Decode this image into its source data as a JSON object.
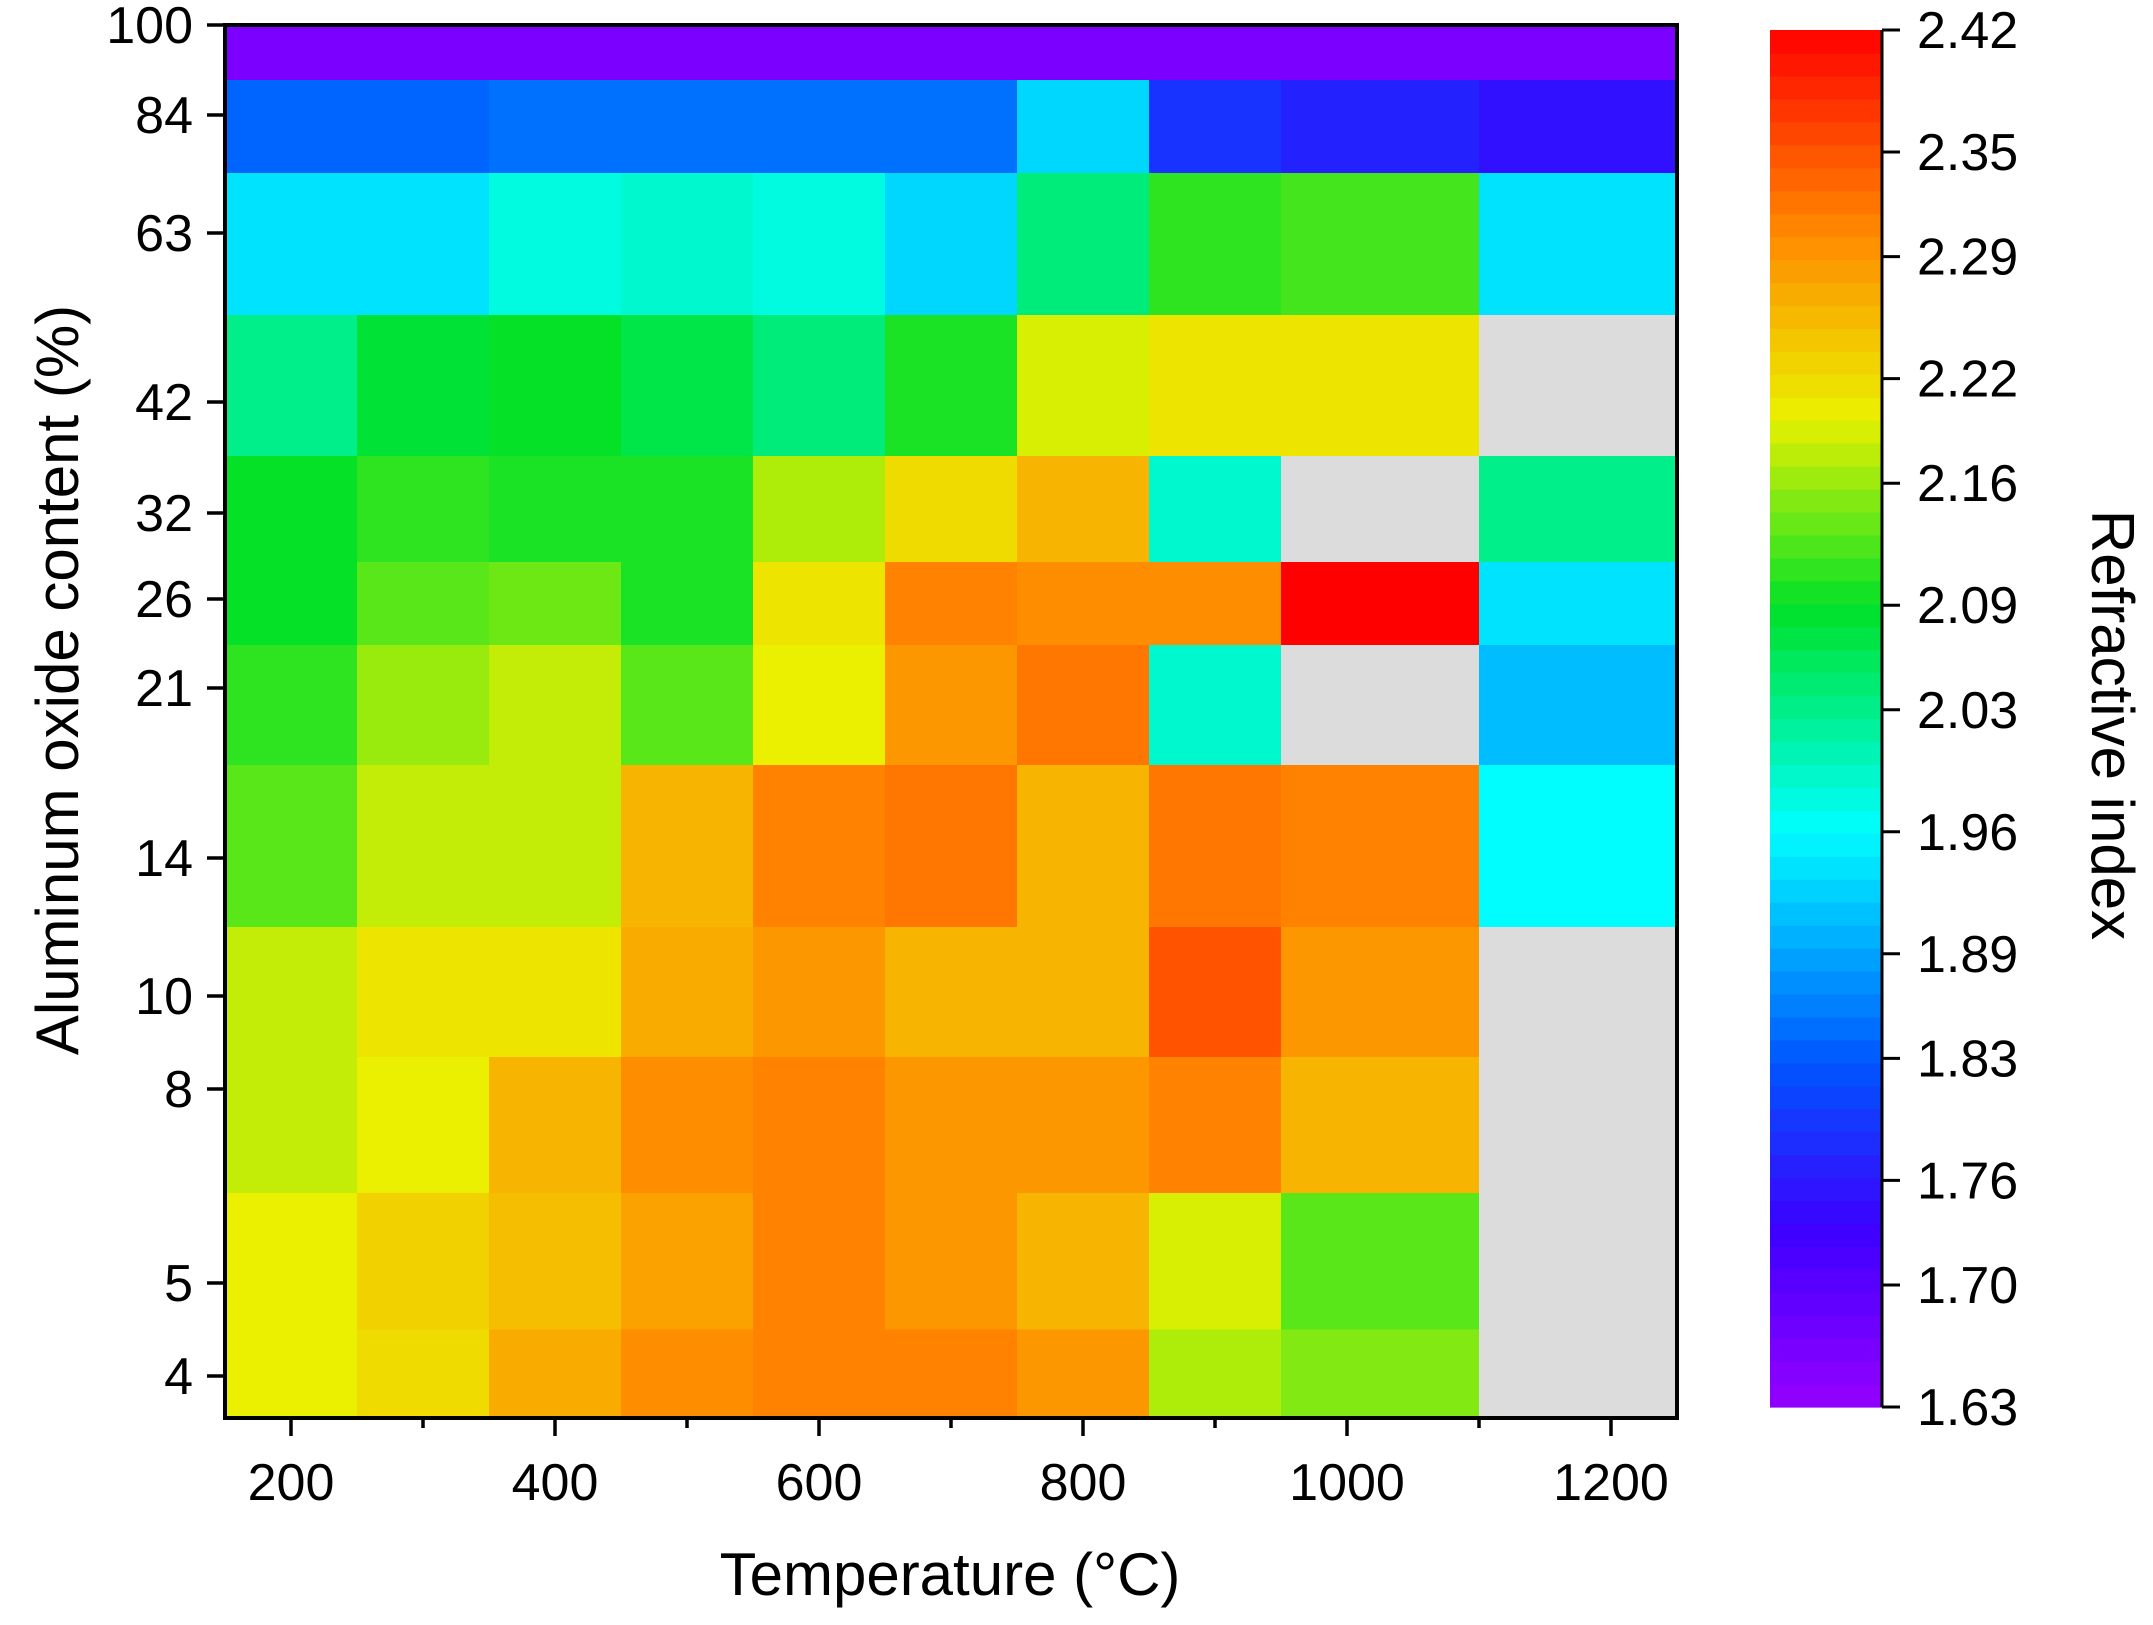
{
  "chart_data": {
    "type": "heatmap",
    "xlabel": "Temperature (°C)",
    "ylabel": "Aluminum oxide content (%)",
    "colorbar_label": "Refractive index",
    "x_ticks": [
      200,
      400,
      600,
      800,
      1000,
      1200
    ],
    "x_tick_labels": [
      "200",
      "400",
      "600",
      "800",
      "1000",
      "1200"
    ],
    "xlim": [
      150,
      1250
    ],
    "y_ticks": [
      4,
      5,
      8,
      10,
      14,
      21,
      26,
      32,
      42,
      63,
      84,
      100
    ],
    "y_tick_labels": [
      "4",
      "5",
      "8",
      "10",
      "14",
      "21",
      "26",
      "32",
      "42",
      "63",
      "84",
      "100"
    ],
    "colorbar_range": [
      1.63,
      2.42
    ],
    "colorbar_ticks": [
      1.63,
      1.7,
      1.76,
      1.83,
      1.89,
      1.96,
      2.03,
      2.09,
      2.16,
      2.22,
      2.29,
      2.35,
      2.42
    ],
    "colorbar_tick_labels": [
      "1.63",
      "1.70",
      "1.76",
      "1.83",
      "1.89",
      "1.96",
      "2.03",
      "2.09",
      "2.16",
      "2.22",
      "2.29",
      "2.35",
      "2.42"
    ],
    "colormap": "rainbow (violet to red)",
    "missing_color": "#dcdcdc",
    "columns": [
      {
        "x": 200,
        "x_range": [
          150,
          250
        ]
      },
      {
        "x": 300,
        "x_range": [
          250,
          350
        ]
      },
      {
        "x": 400,
        "x_range": [
          350,
          450
        ]
      },
      {
        "x": 500,
        "x_range": [
          450,
          550
        ]
      },
      {
        "x": 600,
        "x_range": [
          550,
          650
        ]
      },
      {
        "x": 700,
        "x_range": [
          650,
          750
        ]
      },
      {
        "x": 800,
        "x_range": [
          750,
          850
        ]
      },
      {
        "x": 900,
        "x_range": [
          850,
          950
        ]
      },
      {
        "x": 1000,
        "x_range": [
          950,
          1100
        ]
      },
      {
        "x": 1175,
        "x_range": [
          1100,
          1250
        ]
      }
    ],
    "rows": [
      {
        "y": 100,
        "y_range": [
          92,
          100
        ]
      },
      {
        "y": 84,
        "y_range": [
          73,
          92
        ]
      },
      {
        "y": 63,
        "y_range": [
          52,
          73
        ]
      },
      {
        "y": 42,
        "y_range": [
          37,
          52
        ]
      },
      {
        "y": 32,
        "y_range": [
          29,
          37
        ]
      },
      {
        "y": 26,
        "y_range": [
          23.5,
          29
        ]
      },
      {
        "y": 21,
        "y_range": [
          17.5,
          23.5
        ]
      },
      {
        "y": 14,
        "y_range": [
          12,
          17.5
        ]
      },
      {
        "y": 10,
        "y_range": [
          9,
          12
        ]
      },
      {
        "y": 8,
        "y_range": [
          6.5,
          9
        ]
      },
      {
        "y": 5,
        "y_range": [
          4.5,
          6.5
        ]
      },
      {
        "y": 4,
        "y_range": [
          3.5,
          4.5
        ]
      }
    ],
    "values": [
      [
        1.66,
        1.66,
        1.66,
        1.66,
        1.66,
        1.66,
        1.66,
        1.66,
        1.66,
        1.66
      ],
      [
        1.84,
        1.84,
        1.85,
        1.85,
        1.85,
        1.85,
        1.93,
        1.79,
        1.77,
        1.75
      ],
      [
        1.94,
        1.94,
        1.98,
        1.99,
        1.98,
        1.93,
        2.04,
        2.11,
        2.12,
        1.94
      ],
      [
        2.03,
        2.08,
        2.09,
        2.07,
        2.04,
        2.1,
        2.19,
        2.21,
        2.21,
        null
      ],
      [
        2.09,
        2.11,
        2.1,
        2.1,
        2.17,
        2.22,
        2.26,
        1.99,
        null,
        2.03
      ],
      [
        2.09,
        2.13,
        2.14,
        2.1,
        2.21,
        2.31,
        2.3,
        2.3,
        2.42,
        1.94
      ],
      [
        2.11,
        2.16,
        2.18,
        2.13,
        2.2,
        2.29,
        2.32,
        1.99,
        null,
        1.91
      ],
      [
        2.13,
        2.18,
        2.18,
        2.26,
        2.31,
        2.32,
        2.26,
        2.32,
        2.31,
        1.96
      ],
      [
        2.18,
        2.21,
        2.21,
        2.27,
        2.29,
        2.26,
        2.26,
        2.35,
        2.29,
        null
      ],
      [
        2.18,
        2.2,
        2.26,
        2.3,
        2.31,
        2.29,
        2.29,
        2.31,
        2.26,
        null
      ],
      [
        2.2,
        2.23,
        2.25,
        2.28,
        2.31,
        2.29,
        2.26,
        2.19,
        2.13,
        null
      ],
      [
        2.2,
        2.22,
        2.27,
        2.3,
        2.31,
        2.31,
        2.29,
        2.17,
        2.15,
        null
      ]
    ]
  }
}
